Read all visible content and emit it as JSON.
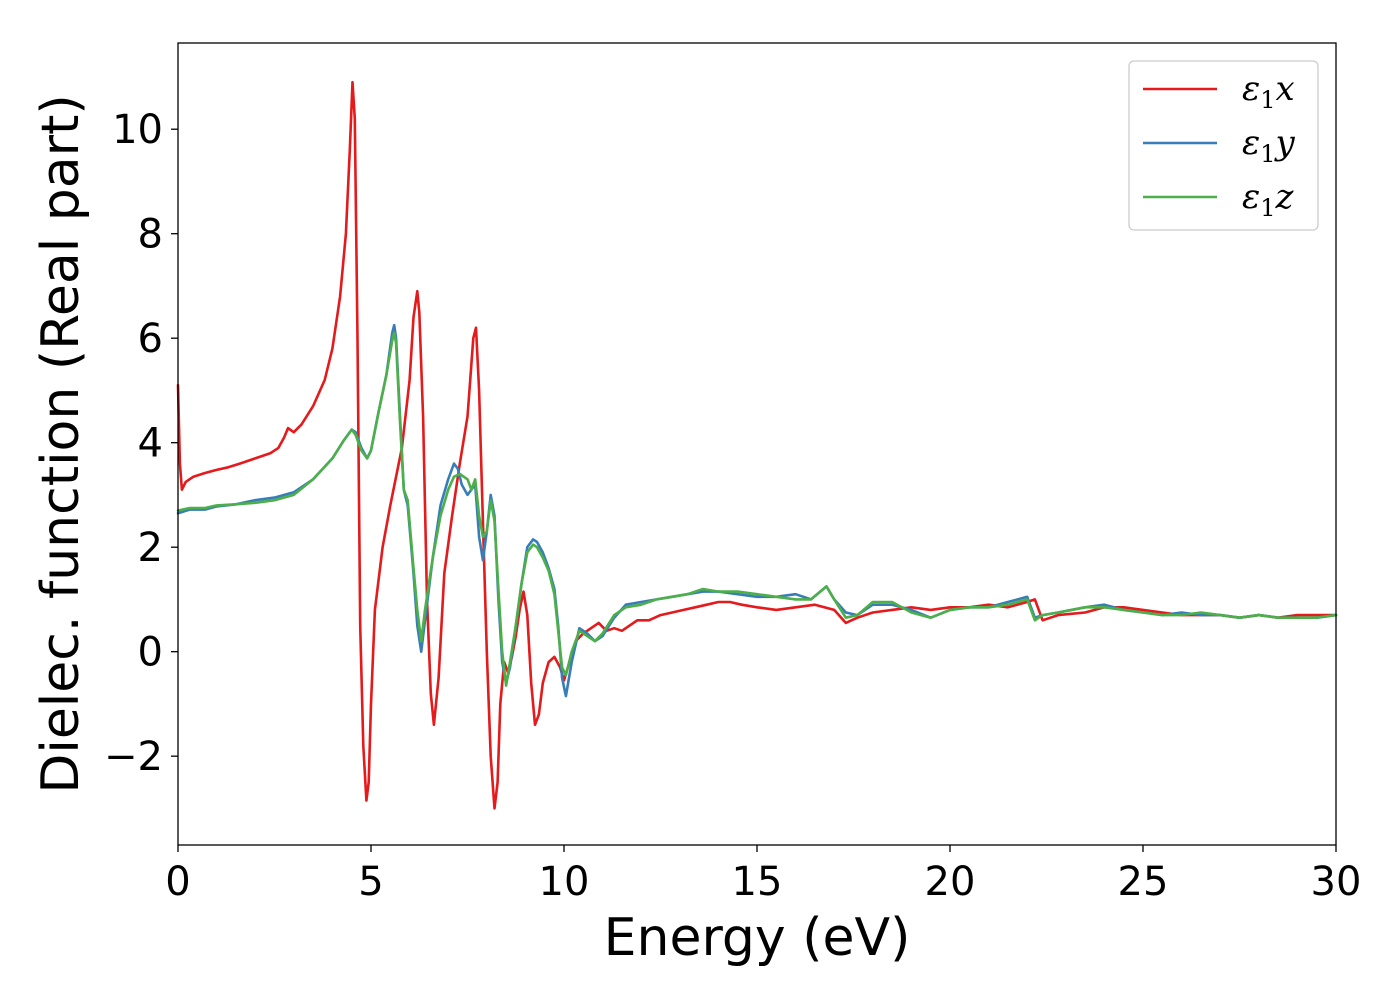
{
  "chart_data": {
    "type": "line",
    "xlabel": "Energy (eV)",
    "ylabel": "Dielec. function (Real part)",
    "xlim": [
      0,
      30
    ],
    "ylim": [
      -3.7,
      11.65
    ],
    "xticks": [
      0,
      5,
      10,
      15,
      20,
      25,
      30
    ],
    "xtick_labels": [
      "0",
      "5",
      "10",
      "15",
      "20",
      "25",
      "30"
    ],
    "yticks": [
      -2,
      0,
      2,
      4,
      6,
      8,
      10
    ],
    "ytick_labels": [
      "−2",
      "0",
      "2",
      "4",
      "6",
      "8",
      "10"
    ],
    "grid": false,
    "legend_position": "top-right",
    "series": [
      {
        "name": "ε1x",
        "legend": {
          "symbol": "ε",
          "sub": "1",
          "var": "x"
        },
        "color": "#e41a1c",
        "x": [
          0,
          0.05,
          0.1,
          0.2,
          0.4,
          0.7,
          1.0,
          1.3,
          1.6,
          2.0,
          2.4,
          2.6,
          2.75,
          2.85,
          3.0,
          3.2,
          3.5,
          3.8,
          4.0,
          4.2,
          4.35,
          4.45,
          4.52,
          4.58,
          4.65,
          4.72,
          4.8,
          4.88,
          4.94,
          5.0,
          5.1,
          5.3,
          5.5,
          5.8,
          6.0,
          6.1,
          6.2,
          6.25,
          6.35,
          6.45,
          6.55,
          6.63,
          6.75,
          6.9,
          7.1,
          7.3,
          7.5,
          7.65,
          7.72,
          7.8,
          7.9,
          8.0,
          8.1,
          8.2,
          8.28,
          8.35,
          8.45,
          8.55,
          8.65,
          8.75,
          8.85,
          8.95,
          9.05,
          9.15,
          9.25,
          9.35,
          9.45,
          9.6,
          9.75,
          9.9,
          10.0,
          10.1,
          10.3,
          10.5,
          10.7,
          10.9,
          11.1,
          11.3,
          11.5,
          11.7,
          11.9,
          12.2,
          12.5,
          12.8,
          13.1,
          13.4,
          13.7,
          14.0,
          14.3,
          14.6,
          15.0,
          15.5,
          16.0,
          16.5,
          17.0,
          17.3,
          17.6,
          18.0,
          18.5,
          19.0,
          19.5,
          20.0,
          20.5,
          21.0,
          21.5,
          22.0,
          22.2,
          22.4,
          22.8,
          23.5,
          24.0,
          24.5,
          25.0,
          25.5,
          26.0,
          26.5,
          27.0,
          27.5,
          28.0,
          28.5,
          29.0,
          29.5,
          30.0
        ],
        "y": [
          5.1,
          3.6,
          3.1,
          3.25,
          3.35,
          3.42,
          3.48,
          3.53,
          3.6,
          3.7,
          3.8,
          3.9,
          4.1,
          4.28,
          4.2,
          4.35,
          4.7,
          5.2,
          5.8,
          6.8,
          8.0,
          9.6,
          10.9,
          10.2,
          6.0,
          0.5,
          -1.8,
          -2.85,
          -2.5,
          -1.0,
          0.8,
          2.0,
          2.8,
          3.9,
          5.2,
          6.4,
          6.9,
          6.5,
          4.5,
          1.0,
          -0.8,
          -1.4,
          -0.5,
          1.5,
          2.6,
          3.6,
          4.5,
          6.0,
          6.2,
          5.0,
          2.5,
          0.0,
          -2.0,
          -3.0,
          -2.5,
          -1.0,
          -0.2,
          -0.4,
          -0.1,
          0.3,
          0.8,
          1.15,
          0.7,
          -0.6,
          -1.4,
          -1.2,
          -0.6,
          -0.2,
          -0.1,
          -0.3,
          -0.55,
          -0.3,
          0.2,
          0.35,
          0.45,
          0.55,
          0.4,
          0.45,
          0.4,
          0.5,
          0.6,
          0.6,
          0.7,
          0.75,
          0.8,
          0.85,
          0.9,
          0.95,
          0.95,
          0.9,
          0.85,
          0.8,
          0.85,
          0.9,
          0.8,
          0.55,
          0.65,
          0.75,
          0.8,
          0.85,
          0.8,
          0.85,
          0.85,
          0.9,
          0.85,
          0.95,
          1.0,
          0.6,
          0.7,
          0.75,
          0.85,
          0.85,
          0.8,
          0.75,
          0.7,
          0.7,
          0.7,
          0.65,
          0.7,
          0.65,
          0.7,
          0.7,
          0.7
        ]
      },
      {
        "name": "ε1y",
        "legend": {
          "symbol": "ε",
          "sub": "1",
          "var": "y"
        },
        "color": "#377eb8",
        "x": [
          0,
          0.3,
          0.7,
          1.0,
          1.5,
          2.0,
          2.5,
          3.0,
          3.5,
          4.0,
          4.3,
          4.5,
          4.6,
          4.75,
          4.9,
          5.0,
          5.2,
          5.4,
          5.55,
          5.6,
          5.65,
          5.75,
          5.85,
          5.95,
          6.1,
          6.2,
          6.3,
          6.4,
          6.6,
          6.8,
          7.0,
          7.15,
          7.25,
          7.35,
          7.5,
          7.7,
          7.8,
          7.9,
          8.0,
          8.1,
          8.2,
          8.3,
          8.4,
          8.5,
          8.6,
          8.75,
          8.9,
          9.05,
          9.2,
          9.3,
          9.45,
          9.6,
          9.75,
          9.85,
          9.95,
          10.05,
          10.2,
          10.4,
          10.6,
          10.8,
          11.0,
          11.3,
          11.6,
          12.0,
          12.4,
          12.8,
          13.2,
          13.6,
          14.0,
          14.5,
          15.0,
          15.5,
          16.0,
          16.4,
          16.8,
          17.0,
          17.3,
          17.6,
          18.0,
          18.5,
          19.0,
          19.5,
          20.0,
          20.5,
          21.0,
          21.5,
          22.0,
          22.2,
          22.4,
          22.8,
          23.5,
          24.0,
          24.5,
          25.0,
          25.5,
          26.0,
          26.5,
          27.0,
          27.5,
          28.0,
          28.5,
          29.0,
          29.5,
          30.0
        ],
        "y": [
          2.65,
          2.72,
          2.72,
          2.78,
          2.82,
          2.9,
          2.95,
          3.05,
          3.3,
          3.7,
          4.05,
          4.25,
          4.2,
          3.9,
          3.7,
          3.85,
          4.6,
          5.3,
          6.1,
          6.25,
          6.0,
          4.5,
          3.1,
          2.8,
          1.5,
          0.5,
          0.0,
          0.6,
          1.8,
          2.8,
          3.3,
          3.6,
          3.5,
          3.2,
          3.0,
          3.2,
          2.2,
          1.75,
          2.3,
          3.0,
          2.6,
          1.0,
          -0.2,
          -0.6,
          -0.3,
          0.5,
          1.3,
          2.0,
          2.15,
          2.1,
          1.9,
          1.6,
          1.2,
          0.5,
          -0.5,
          -0.85,
          -0.2,
          0.45,
          0.35,
          0.2,
          0.3,
          0.65,
          0.9,
          0.95,
          1.0,
          1.05,
          1.1,
          1.15,
          1.15,
          1.1,
          1.05,
          1.05,
          1.1,
          1.0,
          1.25,
          1.0,
          0.75,
          0.7,
          0.9,
          0.9,
          0.8,
          0.65,
          0.8,
          0.85,
          0.85,
          0.95,
          1.05,
          0.65,
          0.7,
          0.75,
          0.85,
          0.9,
          0.8,
          0.75,
          0.7,
          0.75,
          0.7,
          0.7,
          0.65,
          0.7,
          0.65,
          0.65,
          0.65,
          0.7
        ]
      },
      {
        "name": "ε1z",
        "legend": {
          "symbol": "ε",
          "sub": "1",
          "var": "z"
        },
        "color": "#4daf4a",
        "x": [
          0,
          0.3,
          0.7,
          1.0,
          1.5,
          2.0,
          2.5,
          3.0,
          3.5,
          4.0,
          4.3,
          4.5,
          4.6,
          4.75,
          4.9,
          5.0,
          5.2,
          5.4,
          5.55,
          5.6,
          5.65,
          5.75,
          5.85,
          5.95,
          6.1,
          6.2,
          6.3,
          6.4,
          6.6,
          6.8,
          7.0,
          7.15,
          7.3,
          7.5,
          7.6,
          7.7,
          7.8,
          7.9,
          8.0,
          8.1,
          8.2,
          8.3,
          8.4,
          8.5,
          8.6,
          8.75,
          8.9,
          9.05,
          9.2,
          9.3,
          9.45,
          9.6,
          9.75,
          9.85,
          9.95,
          10.05,
          10.2,
          10.4,
          10.6,
          10.8,
          11.0,
          11.3,
          11.6,
          12.0,
          12.4,
          12.8,
          13.2,
          13.6,
          14.0,
          14.5,
          15.0,
          15.5,
          16.0,
          16.4,
          16.8,
          17.0,
          17.3,
          17.6,
          18.0,
          18.5,
          19.0,
          19.5,
          20.0,
          20.5,
          21.0,
          21.5,
          22.0,
          22.2,
          22.4,
          22.8,
          23.5,
          24.0,
          24.5,
          25.0,
          25.5,
          26.0,
          26.5,
          27.0,
          27.5,
          28.0,
          28.5,
          29.0,
          29.5,
          30.0
        ],
        "y": [
          2.7,
          2.75,
          2.75,
          2.8,
          2.82,
          2.85,
          2.9,
          3.0,
          3.3,
          3.7,
          4.05,
          4.25,
          4.15,
          3.85,
          3.7,
          3.85,
          4.6,
          5.3,
          5.95,
          6.1,
          5.9,
          4.4,
          3.1,
          2.9,
          1.6,
          0.8,
          0.2,
          0.8,
          1.8,
          2.6,
          3.1,
          3.35,
          3.4,
          3.3,
          3.1,
          3.3,
          2.6,
          2.2,
          2.3,
          2.9,
          2.5,
          1.2,
          0.0,
          -0.65,
          -0.2,
          0.5,
          1.3,
          1.9,
          2.05,
          2.0,
          1.8,
          1.55,
          1.1,
          0.4,
          -0.3,
          -0.45,
          0.0,
          0.4,
          0.3,
          0.2,
          0.35,
          0.7,
          0.85,
          0.9,
          1.0,
          1.05,
          1.1,
          1.2,
          1.15,
          1.15,
          1.1,
          1.05,
          1.0,
          1.0,
          1.25,
          1.0,
          0.65,
          0.7,
          0.95,
          0.95,
          0.75,
          0.65,
          0.8,
          0.85,
          0.85,
          0.9,
          1.0,
          0.6,
          0.7,
          0.75,
          0.85,
          0.85,
          0.8,
          0.75,
          0.7,
          0.7,
          0.75,
          0.7,
          0.65,
          0.7,
          0.65,
          0.65,
          0.65,
          0.7
        ]
      }
    ]
  }
}
